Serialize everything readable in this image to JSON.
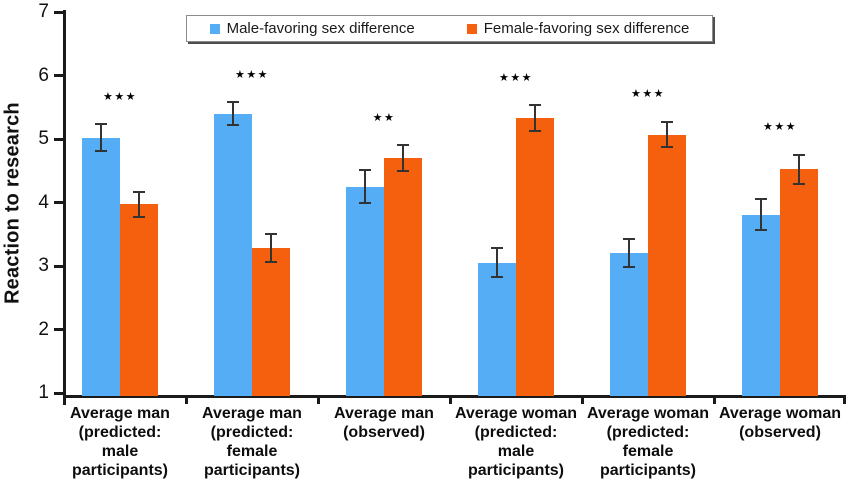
{
  "figure": {
    "y_ticks": [
      1,
      2,
      3,
      4,
      5,
      6,
      7
    ]
  },
  "chart_data": {
    "type": "bar",
    "title": "",
    "xlabel": "",
    "ylabel": "Reaction to research",
    "ylim": [
      1,
      7
    ],
    "grid": false,
    "legend_position": "top-center",
    "categories": [
      "Average man (predicted: male participants)",
      "Average man (predicted: female participants)",
      "Average man (observed)",
      "Average woman (predicted: male participants)",
      "Average woman (predicted: female participants)",
      "Average woman (observed)"
    ],
    "category_label_lines": [
      [
        "Average man",
        "(predicted:",
        "male",
        "participants)"
      ],
      [
        "Average man",
        "(predicted:",
        "female",
        "participants)"
      ],
      [
        "Average man",
        "(observed)"
      ],
      [
        "Average woman",
        "(predicted:",
        "male",
        "participants)"
      ],
      [
        "Average woman",
        "(predicted:",
        "female",
        "participants)"
      ],
      [
        "Average woman",
        "(observed)"
      ]
    ],
    "series": [
      {
        "name": "Male-favoring sex difference",
        "color": "#55ADF5",
        "values": [
          5.02,
          5.4,
          4.25,
          3.05,
          3.2,
          3.81
        ],
        "errors": [
          0.21,
          0.18,
          0.26,
          0.23,
          0.22,
          0.25
        ]
      },
      {
        "name": "Female-favoring sex difference",
        "color": "#F4600D",
        "values": [
          3.97,
          3.28,
          4.7,
          5.33,
          5.07,
          4.52
        ],
        "errors": [
          0.2,
          0.22,
          0.2,
          0.2,
          0.2,
          0.23
        ]
      }
    ],
    "significance": [
      "***",
      "***",
      "**",
      "***",
      "***",
      "***"
    ]
  }
}
